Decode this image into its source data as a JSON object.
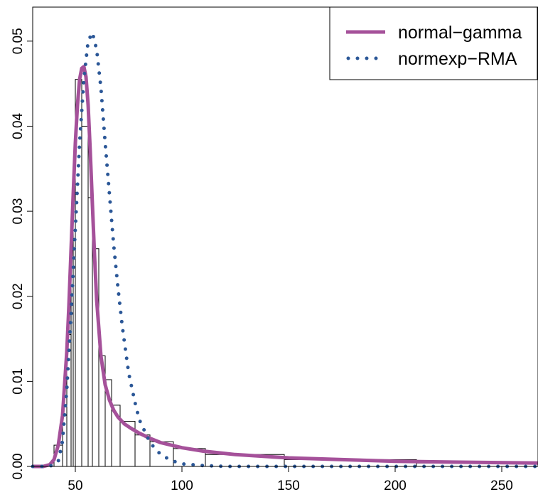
{
  "chart_data": {
    "type": "histogram",
    "title": "",
    "xlabel": "",
    "ylabel": "",
    "xlim": [
      30,
      267
    ],
    "ylim": [
      0,
      0.054
    ],
    "x_ticks": [
      50,
      100,
      150,
      200,
      250
    ],
    "y_ticks": [
      0.0,
      0.01,
      0.02,
      0.03,
      0.04,
      0.05
    ],
    "x_tick_labels": [
      "50",
      "100",
      "150",
      "200",
      "250"
    ],
    "y_tick_labels": [
      "0.00",
      "0.01",
      "0.02",
      "0.03",
      "0.04",
      "0.05"
    ],
    "histogram": {
      "bins": [
        {
          "x0": 40,
          "x1": 44,
          "density": 0.0025
        },
        {
          "x0": 44,
          "x1": 46,
          "density": 0.006
        },
        {
          "x0": 46,
          "x1": 48,
          "density": 0.0155
        },
        {
          "x0": 48,
          "x1": 49,
          "density": 0.0276
        },
        {
          "x0": 49,
          "x1": 50,
          "density": 0.0338
        },
        {
          "x0": 50,
          "x1": 53,
          "density": 0.0455
        },
        {
          "x0": 53,
          "x1": 56,
          "density": 0.04
        },
        {
          "x0": 56,
          "x1": 58,
          "density": 0.0316
        },
        {
          "x0": 58,
          "x1": 61,
          "density": 0.0256
        },
        {
          "x0": 61,
          "x1": 64,
          "density": 0.013
        },
        {
          "x0": 64,
          "x1": 67,
          "density": 0.0102
        },
        {
          "x0": 67,
          "x1": 71,
          "density": 0.0072
        },
        {
          "x0": 71,
          "x1": 78,
          "density": 0.0053
        },
        {
          "x0": 78,
          "x1": 85,
          "density": 0.0037
        },
        {
          "x0": 85,
          "x1": 96,
          "density": 0.0029
        },
        {
          "x0": 96,
          "x1": 111,
          "density": 0.0021
        },
        {
          "x0": 111,
          "x1": 148,
          "density": 0.0014
        },
        {
          "x0": 148,
          "x1": 210,
          "density": 0.0008
        },
        {
          "x0": 210,
          "x1": 267,
          "density": 0.0004
        }
      ]
    },
    "series": [
      {
        "name": "normal−gamma",
        "style": "solid",
        "color": "#A5519A",
        "x": [
          30,
          35,
          38,
          40,
          42,
          44,
          46,
          47,
          48,
          49,
          50,
          51,
          52,
          53,
          54,
          55,
          56,
          57,
          58,
          59,
          60,
          62,
          64,
          66,
          68,
          70,
          73,
          76,
          80,
          85,
          90,
          100,
          110,
          125,
          150,
          175,
          200,
          230,
          267
        ],
        "y": [
          0.0,
          0.0,
          0.0002,
          0.0008,
          0.0025,
          0.006,
          0.0135,
          0.019,
          0.0255,
          0.032,
          0.038,
          0.0425,
          0.0455,
          0.0468,
          0.047,
          0.0458,
          0.0425,
          0.037,
          0.0308,
          0.0248,
          0.0196,
          0.013,
          0.0096,
          0.0078,
          0.0066,
          0.0058,
          0.005,
          0.0045,
          0.0039,
          0.0033,
          0.0028,
          0.0022,
          0.0018,
          0.0014,
          0.001,
          0.0008,
          0.0006,
          0.0005,
          0.0004
        ]
      },
      {
        "name": "normexp−RMA",
        "style": "dotted",
        "color": "#2B5797",
        "x": [
          30,
          38,
          42,
          44,
          46,
          48,
          50,
          52,
          54,
          56,
          58,
          60,
          62,
          64,
          66,
          68,
          70,
          72,
          75,
          78,
          80,
          85,
          90,
          95,
          100,
          110,
          120,
          150,
          200,
          267
        ],
        "y": [
          0.0,
          0.0,
          0.0006,
          0.003,
          0.009,
          0.018,
          0.028,
          0.038,
          0.0455,
          0.05,
          0.051,
          0.049,
          0.0445,
          0.038,
          0.032,
          0.026,
          0.021,
          0.0165,
          0.011,
          0.0075,
          0.0055,
          0.0028,
          0.0014,
          0.0007,
          0.0003,
          0.0001,
          0.0,
          0.0,
          0.0,
          0.0
        ]
      }
    ],
    "legend": {
      "position": "top-right",
      "entries": [
        "normal−gamma",
        "normexp−RMA"
      ]
    },
    "grid": false
  }
}
